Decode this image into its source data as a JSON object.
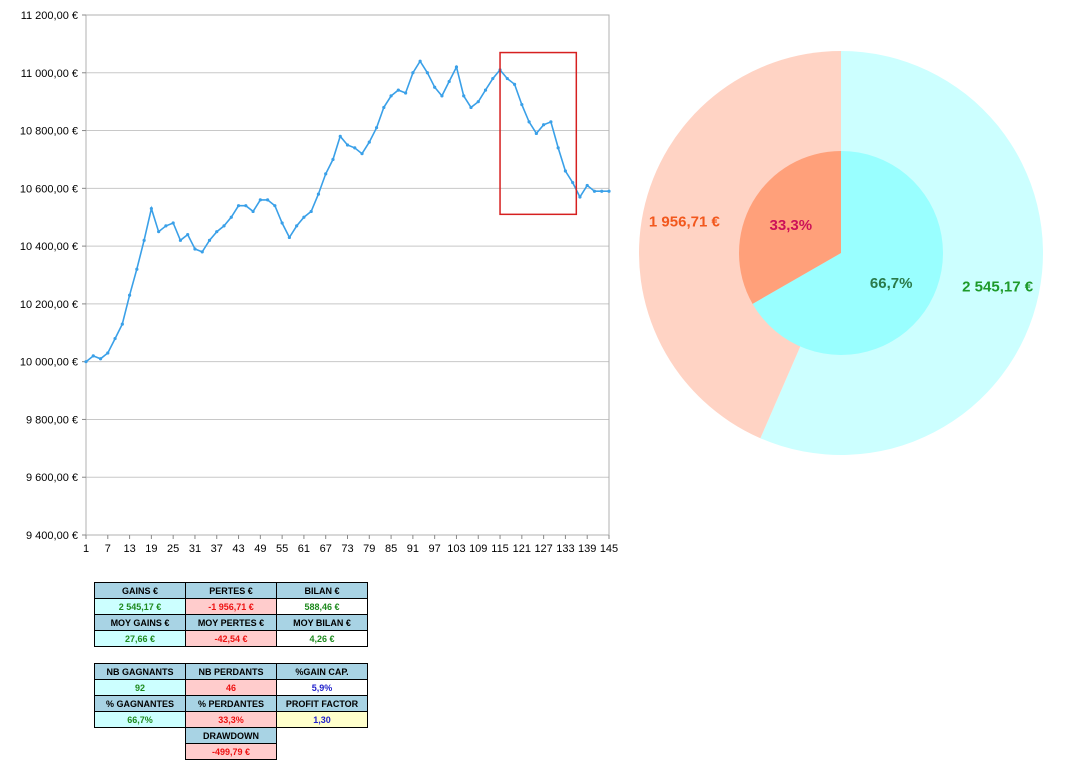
{
  "chart_data": [
    {
      "type": "line",
      "ylim": [
        9400,
        11200
      ],
      "yticks": [
        9400,
        9600,
        9800,
        10000,
        10200,
        10400,
        10600,
        10800,
        11000,
        11200
      ],
      "ytick_labels": [
        "9 400,00 €",
        "9 600,00 €",
        "9 800,00 €",
        "10 000,00 €",
        "10 200,00 €",
        "10 400,00 €",
        "10 600,00 €",
        "10 800,00 €",
        "11 000,00 €",
        "11 200,00 €"
      ],
      "xlim": [
        1,
        145
      ],
      "xtick_labels": [
        "1",
        "7",
        "13",
        "19",
        "25",
        "31",
        "37",
        "43",
        "49",
        "55",
        "61",
        "67",
        "73",
        "79",
        "85",
        "91",
        "97",
        "103",
        "109",
        "115",
        "121",
        "127",
        "133",
        "139",
        "145"
      ],
      "color": "#3aa0e8",
      "series": [
        {
          "x": [
            1,
            3,
            5,
            7,
            9,
            11,
            13,
            15,
            17,
            19,
            21,
            23,
            25,
            27,
            29,
            31,
            33,
            35,
            37,
            39,
            41,
            43,
            45,
            47,
            49,
            51,
            53,
            55,
            57,
            59,
            61,
            63,
            65,
            67,
            69,
            71,
            73,
            75,
            77,
            79,
            81,
            83,
            85,
            87,
            89,
            91,
            93,
            95,
            97,
            99,
            101,
            103,
            105,
            107,
            109,
            111,
            113,
            115,
            117,
            119,
            121,
            123,
            125,
            127,
            129,
            131,
            133,
            135,
            137,
            139,
            141,
            143,
            145
          ],
          "values": [
            10000,
            10020,
            10010,
            10030,
            10080,
            10130,
            10230,
            10320,
            10420,
            10530,
            10450,
            10470,
            10480,
            10420,
            10440,
            10390,
            10380,
            10420,
            10450,
            10470,
            10500,
            10540,
            10540,
            10520,
            10560,
            10560,
            10540,
            10480,
            10430,
            10470,
            10500,
            10520,
            10580,
            10650,
            10700,
            10780,
            10750,
            10740,
            10720,
            10760,
            10810,
            10880,
            10920,
            10940,
            10930,
            11000,
            11040,
            11000,
            10950,
            10920,
            10970,
            11020,
            10920,
            10880,
            10900,
            10940,
            10980,
            11010,
            10980,
            10960,
            10890,
            10830,
            10790,
            10820,
            10830,
            10740,
            10660,
            10620,
            10570,
            10610,
            10590,
            10590,
            10590
          ]
        }
      ],
      "highlight_box": {
        "x_range": [
          115,
          136
        ],
        "y_range": [
          10510,
          11070
        ],
        "color": "#d62020"
      }
    },
    {
      "type": "pie",
      "variant": "double-donut",
      "outer": {
        "labels": [
          "2 545,17 €",
          "1 956,71 €"
        ],
        "values": [
          2545.17,
          1956.71
        ],
        "colors": [
          "#ccffff",
          "#ffd3c4"
        ],
        "label_colors": [
          "#1e9a2a",
          "#f2571c"
        ]
      },
      "inner": {
        "labels": [
          "66,7%",
          "33,3%"
        ],
        "values": [
          66.7,
          33.3
        ],
        "colors": [
          "#99ffff",
          "#ffa07a"
        ],
        "label_colors": [
          "#2a7a4a",
          "#cc1158"
        ]
      }
    }
  ],
  "stats": {
    "gains_label": "GAINS €",
    "gains_value": "2 545,17 €",
    "pertes_label": "PERTES €",
    "pertes_value": "-1 956,71 €",
    "bilan_label": "BILAN €",
    "bilan_value": "588,46 €",
    "moy_gains_label": "MOY GAINS €",
    "moy_gains_value": "27,66 €",
    "moy_pertes_label": "MOY PERTES €",
    "moy_pertes_value": "-42,54 €",
    "moy_bilan_label": "MOY BILAN €",
    "moy_bilan_value": "4,26 €",
    "nb_gagnants_label": "NB GAGNANTS",
    "nb_gagnants_value": "92",
    "nb_perdants_label": "NB PERDANTS",
    "nb_perdants_value": "46",
    "gain_cap_label": "%GAIN CAP.",
    "gain_cap_value": "5,9%",
    "pct_gagnantes_label": "% GAGNANTES",
    "pct_gagnantes_value": "66,7%",
    "pct_perdantes_label": "% PERDANTES",
    "pct_perdantes_value": "33,3%",
    "profit_factor_label": "PROFIT FACTOR",
    "profit_factor_value": "1,30",
    "drawdown_label": "DRAWDOWN",
    "drawdown_value": "-499,79 €"
  }
}
